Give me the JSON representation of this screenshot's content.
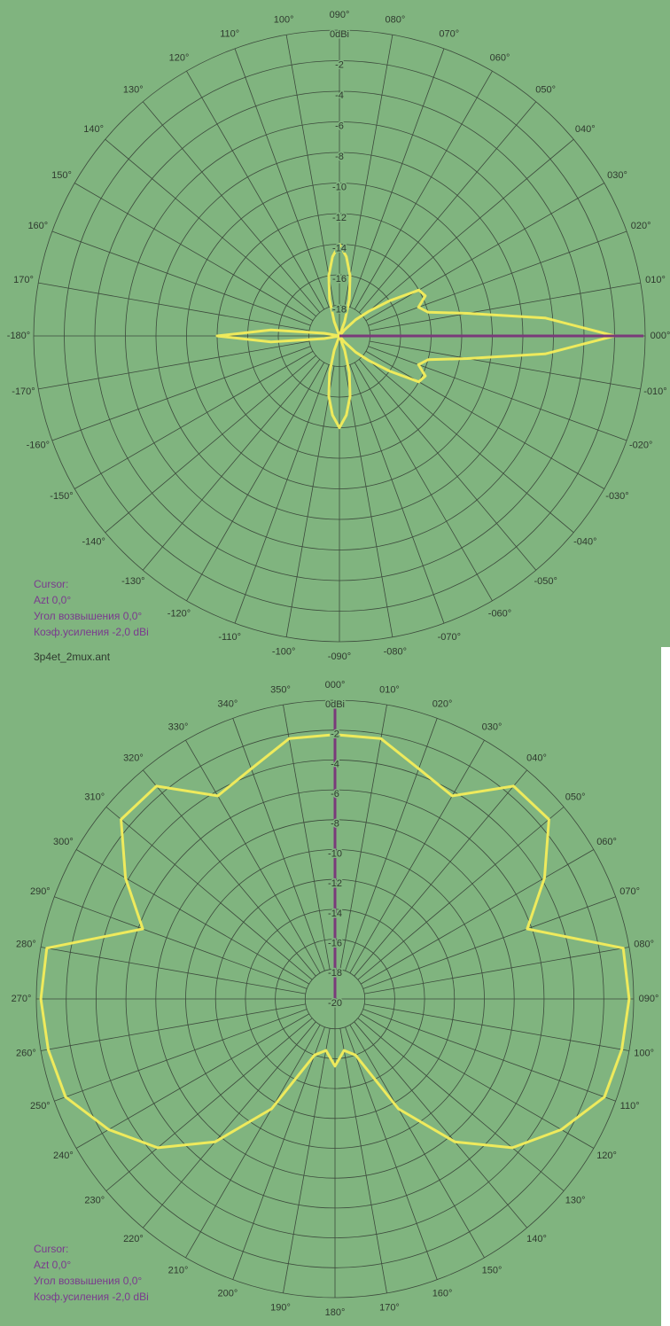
{
  "filename": "3p4et_2mux.ant",
  "plots": [
    {
      "zero": "right",
      "direction": "counterclockwise",
      "rlim": [
        -20,
        0
      ],
      "rticks": [
        {
          "value": 0,
          "label": "0dBi"
        },
        -2,
        -4,
        -6,
        -8,
        -10,
        -12,
        -14,
        -16,
        -18
      ],
      "angle_ticks": [
        {
          "value": -180,
          "label": "-180°"
        },
        {
          "value": -170,
          "label": "-170°"
        },
        {
          "value": -160,
          "label": "-160°"
        },
        {
          "value": -150,
          "label": "-150°"
        },
        {
          "value": -140,
          "label": "-140°"
        },
        {
          "value": -130,
          "label": "-130°"
        },
        {
          "value": -120,
          "label": "-120°"
        },
        {
          "value": -110,
          "label": "-110°"
        },
        {
          "value": -100,
          "label": "-100°"
        },
        {
          "value": -90,
          "label": "-090°"
        },
        {
          "value": -80,
          "label": "-080°"
        },
        {
          "value": -70,
          "label": "-070°"
        },
        {
          "value": -60,
          "label": "-060°"
        },
        {
          "value": -50,
          "label": "-050°"
        },
        {
          "value": -40,
          "label": "-040°"
        },
        {
          "value": -30,
          "label": "-030°"
        },
        {
          "value": -20,
          "label": "-020°"
        },
        {
          "value": -10,
          "label": "-010°"
        },
        {
          "value": 0,
          "label": "000°"
        },
        {
          "value": 10,
          "label": "010°"
        },
        {
          "value": 20,
          "label": "020°"
        },
        {
          "value": 30,
          "label": "030°"
        },
        {
          "value": 40,
          "label": "040°"
        },
        {
          "value": 50,
          "label": "050°"
        },
        {
          "value": 60,
          "label": "060°"
        },
        {
          "value": 70,
          "label": "070°"
        },
        {
          "value": 80,
          "label": "080°"
        },
        {
          "value": 90,
          "label": "090°"
        },
        {
          "value": 100,
          "label": "100°"
        },
        {
          "value": 110,
          "label": "110°"
        },
        {
          "value": 120,
          "label": "120°"
        },
        {
          "value": 130,
          "label": "130°"
        },
        {
          "value": 140,
          "label": "140°"
        },
        {
          "value": 150,
          "label": "150°"
        },
        {
          "value": 160,
          "label": "160°"
        },
        {
          "value": 170,
          "label": "170°"
        }
      ],
      "pattern": {
        "color": "#eeea5c",
        "angles": [
          -180,
          -175,
          -170,
          -165,
          -160,
          -155,
          -150,
          -145,
          -140,
          -135,
          -130,
          -125,
          -120,
          -115,
          -110,
          -105,
          -100,
          -95,
          -90,
          -85,
          -80,
          -75,
          -70,
          -65,
          -60,
          -55,
          -50,
          -45,
          -40,
          -35,
          -30,
          -25,
          -20,
          -15,
          -10,
          -5,
          0,
          5,
          10,
          15,
          20,
          25,
          30,
          35,
          40,
          45,
          50,
          55,
          60,
          65,
          70,
          75,
          80,
          85,
          90,
          95,
          100,
          105,
          110,
          115,
          120,
          125,
          130,
          135,
          140,
          145,
          150,
          155,
          160,
          165,
          170,
          175
        ],
        "values": [
          -12,
          -15.5,
          -19,
          -20,
          -20,
          -20,
          -20,
          -20,
          -20,
          -20,
          -20,
          -20,
          -20,
          -20,
          -19,
          -17.5,
          -16,
          -14.8,
          -14,
          -14.8,
          -16,
          -17.5,
          -19,
          -20,
          -20,
          -20,
          -19.5,
          -18.5,
          -17.5,
          -16,
          -14,
          -13.8,
          -14.5,
          -14,
          -11.5,
          -6.5,
          -2,
          -6.5,
          -11.5,
          -14,
          -14.5,
          -13.8,
          -14,
          -16,
          -17.5,
          -18.5,
          -19.5,
          -20,
          -20,
          -20,
          -19,
          -17.5,
          -16,
          -14.8,
          -14,
          -14.8,
          -16,
          -17.5,
          -19,
          -20,
          -20,
          -20,
          -20,
          -20,
          -20,
          -20,
          -20,
          -20,
          -20,
          -20,
          -19,
          -15.5
        ]
      },
      "cursor": [
        "Cursor:",
        "Azt 0,0°",
        "Угол возвышения 0,0°",
        "Коэф.усиления -2,0 dBi"
      ]
    },
    {
      "zero": "top",
      "direction": "clockwise",
      "rlim": [
        -20,
        0
      ],
      "rticks": [
        {
          "value": 0,
          "label": "0dBi"
        },
        -2,
        -4,
        -6,
        -8,
        -10,
        -12,
        -14,
        -16,
        -18,
        -20
      ],
      "angle_ticks": [
        {
          "value": 0,
          "label": "000°"
        },
        {
          "value": 10,
          "label": "010°"
        },
        {
          "value": 20,
          "label": "020°"
        },
        {
          "value": 30,
          "label": "030°"
        },
        {
          "value": 40,
          "label": "040°"
        },
        {
          "value": 50,
          "label": "050°"
        },
        {
          "value": 60,
          "label": "060°"
        },
        {
          "value": 70,
          "label": "070°"
        },
        {
          "value": 80,
          "label": "080°"
        },
        {
          "value": 90,
          "label": "090°"
        },
        {
          "value": 100,
          "label": "100°"
        },
        {
          "value": 110,
          "label": "110°"
        },
        {
          "value": 120,
          "label": "120°"
        },
        {
          "value": 130,
          "label": "130°"
        },
        {
          "value": 140,
          "label": "140°"
        },
        {
          "value": 150,
          "label": "150°"
        },
        {
          "value": 160,
          "label": "160°"
        },
        {
          "value": 170,
          "label": "170°"
        },
        {
          "value": 180,
          "label": "180°"
        },
        {
          "value": 190,
          "label": "190°"
        },
        {
          "value": 200,
          "label": "200°"
        },
        {
          "value": 210,
          "label": "210°"
        },
        {
          "value": 220,
          "label": "220°"
        },
        {
          "value": 230,
          "label": "230°"
        },
        {
          "value": 240,
          "label": "240°"
        },
        {
          "value": 250,
          "label": "250°"
        },
        {
          "value": 260,
          "label": "260°"
        },
        {
          "value": 270,
          "label": "270°"
        },
        {
          "value": 280,
          "label": "280°"
        },
        {
          "value": 290,
          "label": "290°"
        },
        {
          "value": 300,
          "label": "300°"
        },
        {
          "value": 310,
          "label": "310°"
        },
        {
          "value": 320,
          "label": "320°"
        },
        {
          "value": 330,
          "label": "330°"
        },
        {
          "value": 340,
          "label": "340°"
        },
        {
          "value": 350,
          "label": "350°"
        }
      ],
      "pattern": {
        "color": "#eeea5c",
        "angles": [
          0,
          10,
          20,
          30,
          40,
          50,
          60,
          70,
          80,
          90,
          100,
          110,
          120,
          130,
          140,
          150,
          160,
          170,
          180,
          190,
          200,
          210,
          220,
          230,
          240,
          250,
          260,
          270,
          280,
          290,
          300,
          310,
          320,
          330,
          340,
          350
        ],
        "values": [
          -2.3,
          -2.3,
          -3.6,
          -4.3,
          -1.4,
          -1.3,
          -3.8,
          -6.3,
          -0.4,
          -0.3,
          -0.5,
          -0.8,
          -2.5,
          -4.5,
          -7.5,
          -11.5,
          -16,
          -16.5,
          -15.5,
          -16.5,
          -16,
          -11.5,
          -7.5,
          -4.5,
          -2.5,
          -0.8,
          -0.5,
          -0.3,
          -0.4,
          -6.3,
          -3.8,
          -1.3,
          -1.4,
          -4.3,
          -3.6,
          -2.3
        ]
      },
      "cursor": [
        "Cursor:",
        "Azt 0,0°",
        "Угол возвышения 0,0°",
        "Коэф.усиления -2,0 dBi"
      ]
    }
  ]
}
